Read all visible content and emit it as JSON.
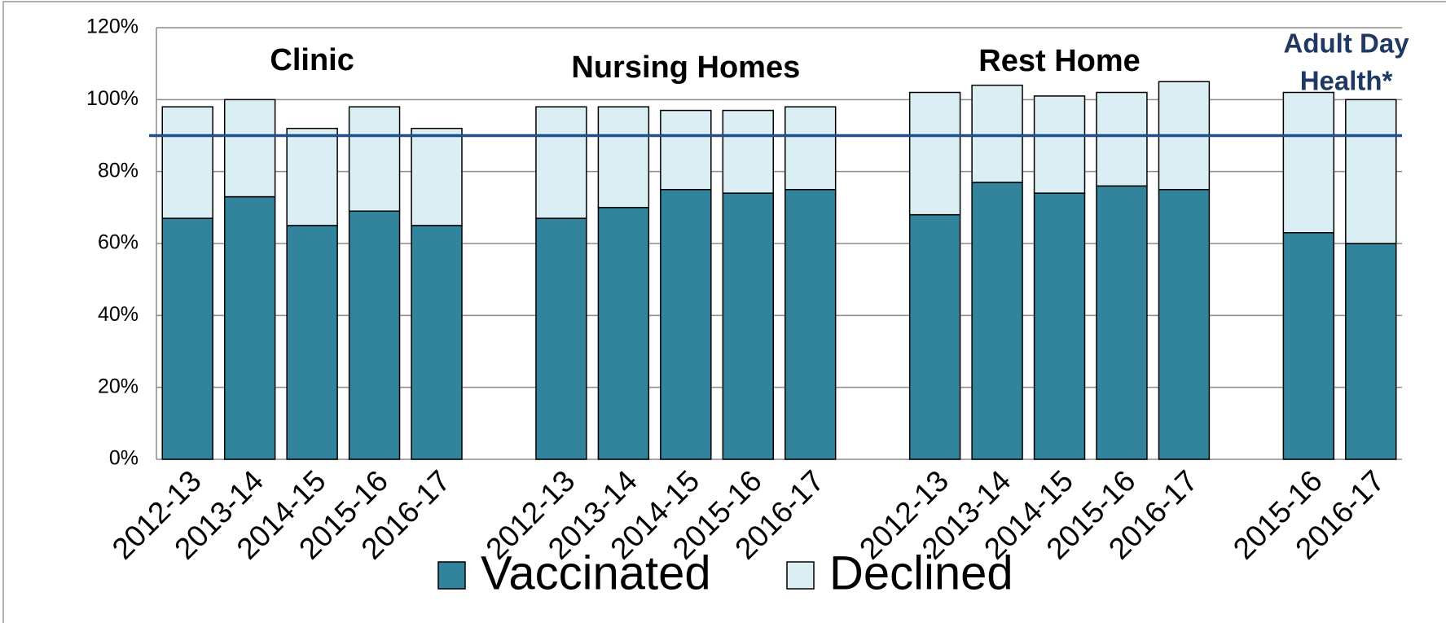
{
  "chart_data": {
    "type": "stacked_bar",
    "categories": [
      "2012-13",
      "2013-14",
      "2014-15",
      "2015-16",
      "2016-17",
      null,
      "2012-13",
      "2013-14",
      "2014-15",
      "2015-16",
      "2016-17",
      null,
      "2012-13",
      "2013-14",
      "2014-15",
      "2015-16",
      "2016-17",
      null,
      "2015-16",
      "2016-17"
    ],
    "series": [
      {
        "name": "Vaccinated",
        "color": "#31849b",
        "values": [
          67,
          73,
          65,
          69,
          65,
          null,
          67,
          70,
          75,
          74,
          75,
          null,
          68,
          77,
          74,
          76,
          75,
          null,
          63,
          60
        ]
      },
      {
        "name": "Declined",
        "color": "#dbeef3",
        "values": [
          31,
          27,
          27,
          29,
          27,
          null,
          31,
          28,
          22,
          23,
          23,
          null,
          34,
          27,
          27,
          26,
          30,
          null,
          39,
          40
        ]
      }
    ],
    "group_labels": [
      [
        "Clinic"
      ],
      [
        "Nursing Homes"
      ],
      [
        "Rest Home"
      ],
      [
        "Adult Day",
        "Health*"
      ]
    ],
    "reference_line": 90,
    "reference_color": "#1f4e8c",
    "ylim": [
      0,
      120
    ],
    "yticks": [
      {
        "value": 0,
        "label": "0%"
      },
      {
        "value": 20,
        "label": "20%"
      },
      {
        "value": 40,
        "label": "40%"
      },
      {
        "value": 60,
        "label": "60%"
      },
      {
        "value": 80,
        "label": "80%"
      },
      {
        "value": 100,
        "label": "100%"
      },
      {
        "value": 120,
        "label": "120%"
      }
    ],
    "grid": true,
    "legend": "bottom"
  }
}
